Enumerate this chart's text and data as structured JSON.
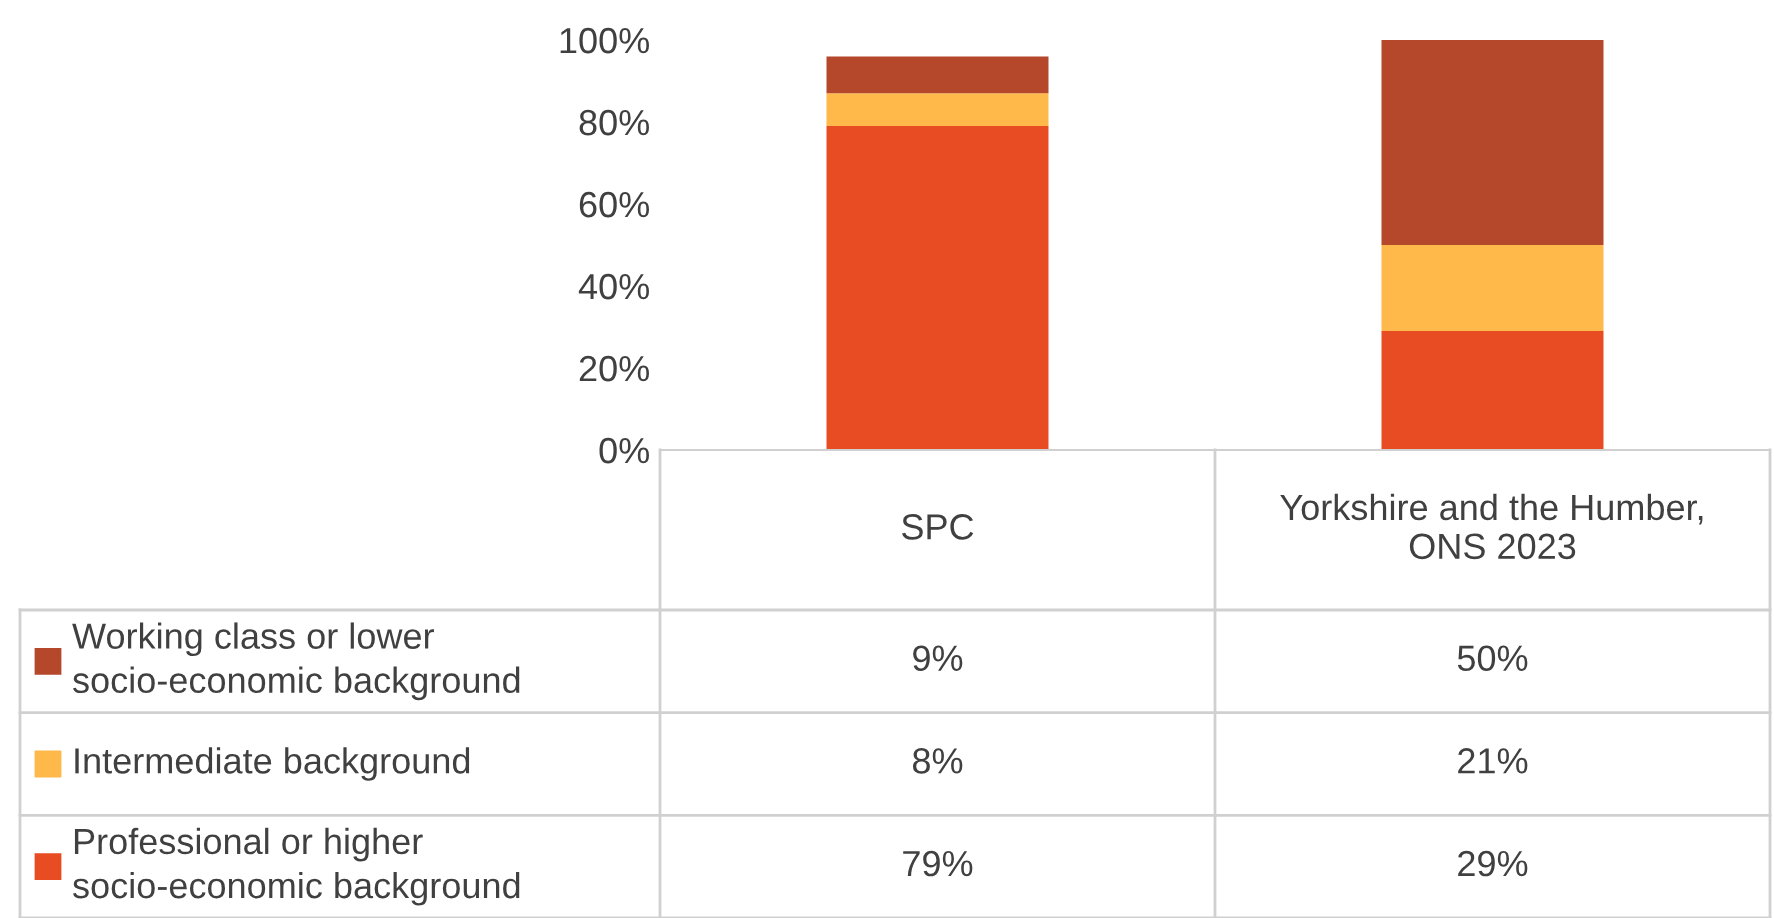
{
  "chart_data": {
    "type": "bar",
    "stacked": true,
    "categories": [
      "SPC",
      "Yorkshire and the Humber, ONS 2023"
    ],
    "series": [
      {
        "name": "Professional or higher socio-economic background",
        "color": "#e84c22",
        "values": [
          79,
          29
        ],
        "value_labels": [
          "79%",
          "29%"
        ]
      },
      {
        "name": "Intermediate background",
        "color": "#ffb84a",
        "values": [
          8,
          21
        ],
        "value_labels": [
          "8%",
          "21%"
        ]
      },
      {
        "name": "Working class or lower socio-economic background",
        "color": "#b5472a",
        "values": [
          9,
          50
        ],
        "value_labels": [
          "9%",
          "50%"
        ]
      }
    ],
    "ylim": [
      0,
      100
    ],
    "yticks": [
      {
        "value": 0,
        "label": "0%"
      },
      {
        "value": 20,
        "label": "20%"
      },
      {
        "value": 40,
        "label": "40%"
      },
      {
        "value": 60,
        "label": "60%"
      },
      {
        "value": 80,
        "label": "80%"
      },
      {
        "value": 100,
        "label": "100%"
      }
    ],
    "grid": false,
    "legend": "bottom"
  }
}
